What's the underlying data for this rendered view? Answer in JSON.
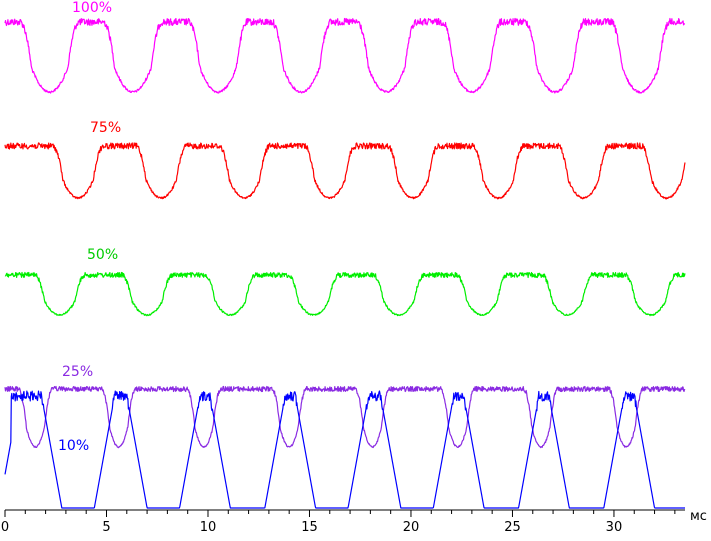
{
  "chart_data": {
    "type": "line",
    "title": "",
    "xlabel": "мс",
    "ylabel": "",
    "xlim": [
      0,
      33.5
    ],
    "x_ticks": [
      0,
      5,
      10,
      15,
      20,
      25,
      30
    ],
    "x_tick_labels": [
      "0",
      "5",
      "10",
      "15",
      "20",
      "25",
      "30"
    ],
    "grid": false,
    "legend": "inline labels next to each trace",
    "series": [
      {
        "name": "100%",
        "color": "#ff00ff",
        "dip_centers_ms": [
          2.2,
          6.3,
          10.5,
          14.6,
          18.8,
          23.0,
          27.1,
          31.3
        ]
      },
      {
        "name": "75%",
        "color": "#ff0000",
        "dip_centers_ms": [
          3.6,
          7.7,
          11.8,
          16.0,
          20.1,
          24.3,
          28.5,
          32.6
        ]
      },
      {
        "name": "50%",
        "color": "#00ee00",
        "dip_centers_ms": [
          2.7,
          7.0,
          11.1,
          15.2,
          19.4,
          23.5,
          27.7,
          31.8
        ]
      },
      {
        "name": "25%",
        "color": "#8a2be2",
        "dip_centers_ms": [
          1.5,
          5.6,
          9.8,
          14.0,
          18.1,
          22.3,
          26.4,
          30.6
        ]
      },
      {
        "name": "10%",
        "color": "#0000ff",
        "low_intervals_ms": [
          [
            2.8,
            4.4
          ],
          [
            7.0,
            8.6
          ],
          [
            11.1,
            12.8
          ],
          [
            15.3,
            16.9
          ],
          [
            19.5,
            21.1
          ],
          [
            23.6,
            25.3
          ],
          [
            27.8,
            29.5
          ],
          [
            32.0,
            33.5
          ]
        ]
      }
    ]
  }
}
